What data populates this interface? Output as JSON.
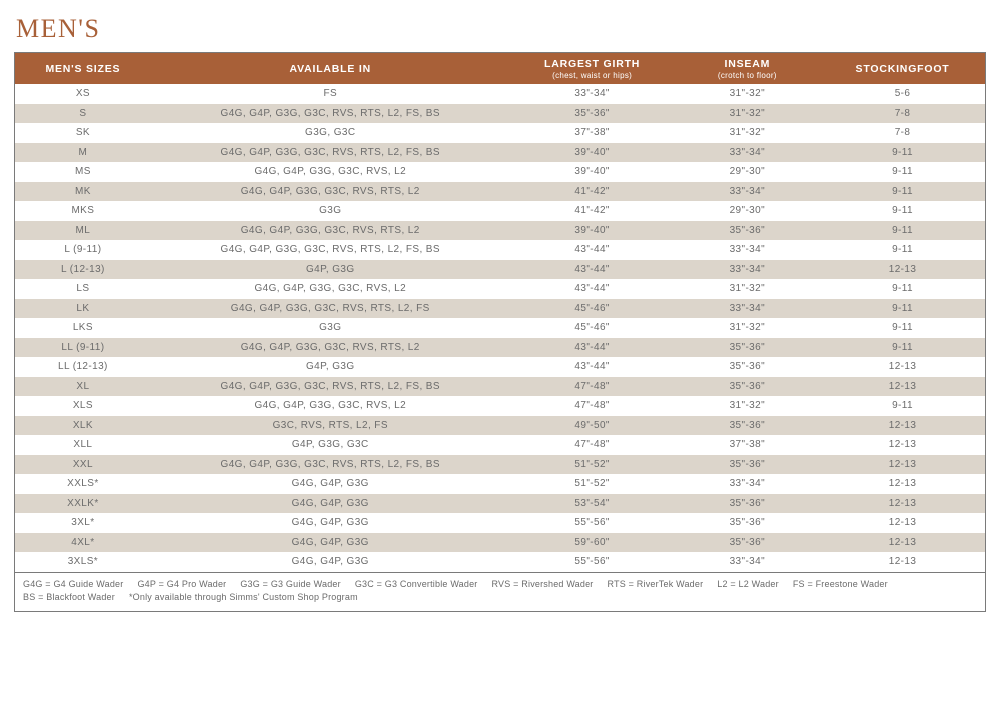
{
  "title": "MEN'S",
  "colors": {
    "accent": "#a86038",
    "text": "#6b6b6b",
    "row_alt": "#dcd5cb",
    "row_base": "#ffffff",
    "border": "#7a7a7a",
    "header_text": "#ffffff"
  },
  "columns": [
    {
      "label": "MEN'S SIZES",
      "sub": ""
    },
    {
      "label": "AVAILABLE IN",
      "sub": ""
    },
    {
      "label": "LARGEST GIRTH",
      "sub": "(chest, waist or hips)"
    },
    {
      "label": "INSEAM",
      "sub": "(crotch to floor)"
    },
    {
      "label": "STOCKINGFOOT",
      "sub": ""
    }
  ],
  "rows": [
    [
      "XS",
      "FS",
      "33\"-34\"",
      "31\"-32\"",
      "5-6"
    ],
    [
      "S",
      "G4G, G4P, G3G, G3C, RVS, RTS, L2, FS, BS",
      "35\"-36\"",
      "31\"-32\"",
      "7-8"
    ],
    [
      "SK",
      "G3G, G3C",
      "37\"-38\"",
      "31\"-32\"",
      "7-8"
    ],
    [
      "M",
      "G4G, G4P, G3G, G3C, RVS, RTS, L2, FS, BS",
      "39\"-40\"",
      "33\"-34\"",
      "9-11"
    ],
    [
      "MS",
      "G4G, G4P, G3G, G3C, RVS, L2",
      "39\"-40\"",
      "29\"-30\"",
      "9-11"
    ],
    [
      "MK",
      "G4G, G4P, G3G, G3C, RVS, RTS, L2",
      "41\"-42\"",
      "33\"-34\"",
      "9-11"
    ],
    [
      "MKS",
      "G3G",
      "41\"-42\"",
      "29\"-30\"",
      "9-11"
    ],
    [
      "ML",
      "G4G, G4P, G3G, G3C, RVS, RTS, L2",
      "39\"-40\"",
      "35\"-36\"",
      "9-11"
    ],
    [
      "L (9-11)",
      "G4G, G4P, G3G, G3C, RVS, RTS, L2, FS, BS",
      "43\"-44\"",
      "33\"-34\"",
      "9-11"
    ],
    [
      "L (12-13)",
      "G4P, G3G",
      "43\"-44\"",
      "33\"-34\"",
      "12-13"
    ],
    [
      "LS",
      "G4G, G4P, G3G, G3C, RVS, L2",
      "43\"-44\"",
      "31\"-32\"",
      "9-11"
    ],
    [
      "LK",
      "G4G, G4P, G3G, G3C, RVS, RTS, L2, FS",
      "45\"-46\"",
      "33\"-34\"",
      "9-11"
    ],
    [
      "LKS",
      "G3G",
      "45\"-46\"",
      "31\"-32\"",
      "9-11"
    ],
    [
      "LL (9-11)",
      "G4G, G4P, G3G, G3C, RVS, RTS, L2",
      "43\"-44\"",
      "35\"-36\"",
      "9-11"
    ],
    [
      "LL (12-13)",
      "G4P, G3G",
      "43\"-44\"",
      "35\"-36\"",
      "12-13"
    ],
    [
      "XL",
      "G4G, G4P, G3G, G3C, RVS, RTS, L2, FS, BS",
      "47\"-48\"",
      "35\"-36\"",
      "12-13"
    ],
    [
      "XLS",
      "G4G, G4P, G3G, G3C, RVS, L2",
      "47\"-48\"",
      "31\"-32\"",
      "9-11"
    ],
    [
      "XLK",
      "G3C, RVS, RTS, L2, FS",
      "49\"-50\"",
      "35\"-36\"",
      "12-13"
    ],
    [
      "XLL",
      "G4P, G3G, G3C",
      "47\"-48\"",
      "37\"-38\"",
      "12-13"
    ],
    [
      "XXL",
      "G4G, G4P, G3G, G3C, RVS, RTS, L2, FS, BS",
      "51\"-52\"",
      "35\"-36\"",
      "12-13"
    ],
    [
      "XXLS*",
      "G4G, G4P, G3G",
      "51\"-52\"",
      "33\"-34\"",
      "12-13"
    ],
    [
      "XXLK*",
      "G4G, G4P, G3G",
      "53\"-54\"",
      "35\"-36\"",
      "12-13"
    ],
    [
      "3XL*",
      "G4G, G4P, G3G",
      "55\"-56\"",
      "35\"-36\"",
      "12-13"
    ],
    [
      "4XL*",
      "G4G, G4P, G3G",
      "59\"-60\"",
      "35\"-36\"",
      "12-13"
    ],
    [
      "3XLS*",
      "G4G, G4P, G3G",
      "55\"-56\"",
      "33\"-34\"",
      "12-13"
    ]
  ],
  "legend_items": [
    "G4G = G4 Guide Wader",
    "G4P = G4 Pro Wader",
    "G3G = G3 Guide Wader",
    "G3C = G3 Convertible Wader",
    "RVS = Rivershed Wader",
    "RTS = RiverTek Wader",
    "L2 = L2 Wader",
    "FS = Freestone Wader",
    "BS = Blackfoot Wader",
    "*Only available through Simms' Custom Shop Program"
  ]
}
